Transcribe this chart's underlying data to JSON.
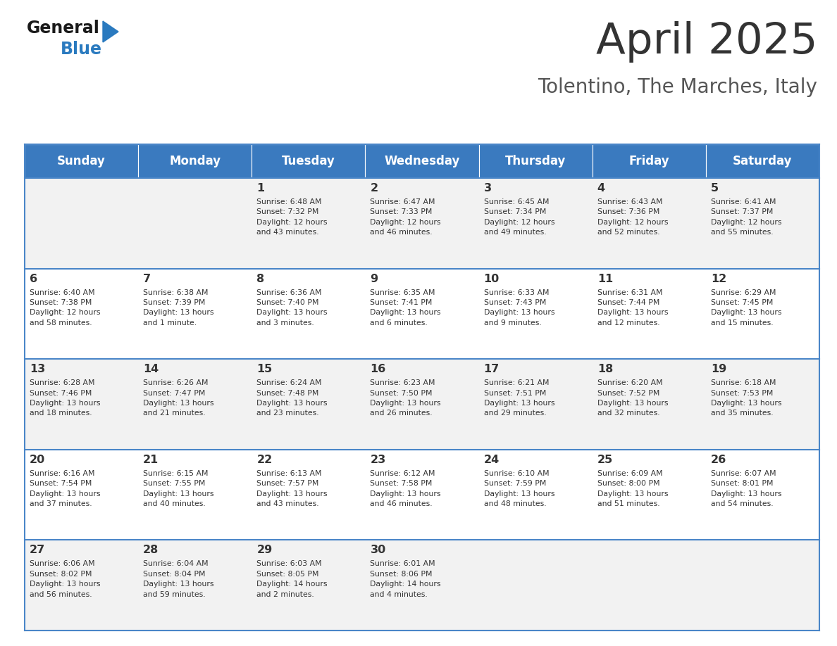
{
  "title": "April 2025",
  "subtitle": "Tolentino, The Marches, Italy",
  "days_of_week": [
    "Sunday",
    "Monday",
    "Tuesday",
    "Wednesday",
    "Thursday",
    "Friday",
    "Saturday"
  ],
  "header_bg": "#3a7abf",
  "header_text": "#ffffff",
  "row_bg_odd": "#f2f2f2",
  "row_bg_even": "#ffffff",
  "cell_text": "#333333",
  "border_color": "#4a86c8",
  "separator_color": "#4a86c8",
  "title_color": "#333333",
  "subtitle_color": "#555555",
  "logo_general_color": "#1a1a1a",
  "logo_blue_color": "#2a7abf",
  "weeks": [
    [
      {
        "day": "",
        "info": ""
      },
      {
        "day": "",
        "info": ""
      },
      {
        "day": "1",
        "info": "Sunrise: 6:48 AM\nSunset: 7:32 PM\nDaylight: 12 hours\nand 43 minutes."
      },
      {
        "day": "2",
        "info": "Sunrise: 6:47 AM\nSunset: 7:33 PM\nDaylight: 12 hours\nand 46 minutes."
      },
      {
        "day": "3",
        "info": "Sunrise: 6:45 AM\nSunset: 7:34 PM\nDaylight: 12 hours\nand 49 minutes."
      },
      {
        "day": "4",
        "info": "Sunrise: 6:43 AM\nSunset: 7:36 PM\nDaylight: 12 hours\nand 52 minutes."
      },
      {
        "day": "5",
        "info": "Sunrise: 6:41 AM\nSunset: 7:37 PM\nDaylight: 12 hours\nand 55 minutes."
      }
    ],
    [
      {
        "day": "6",
        "info": "Sunrise: 6:40 AM\nSunset: 7:38 PM\nDaylight: 12 hours\nand 58 minutes."
      },
      {
        "day": "7",
        "info": "Sunrise: 6:38 AM\nSunset: 7:39 PM\nDaylight: 13 hours\nand 1 minute."
      },
      {
        "day": "8",
        "info": "Sunrise: 6:36 AM\nSunset: 7:40 PM\nDaylight: 13 hours\nand 3 minutes."
      },
      {
        "day": "9",
        "info": "Sunrise: 6:35 AM\nSunset: 7:41 PM\nDaylight: 13 hours\nand 6 minutes."
      },
      {
        "day": "10",
        "info": "Sunrise: 6:33 AM\nSunset: 7:43 PM\nDaylight: 13 hours\nand 9 minutes."
      },
      {
        "day": "11",
        "info": "Sunrise: 6:31 AM\nSunset: 7:44 PM\nDaylight: 13 hours\nand 12 minutes."
      },
      {
        "day": "12",
        "info": "Sunrise: 6:29 AM\nSunset: 7:45 PM\nDaylight: 13 hours\nand 15 minutes."
      }
    ],
    [
      {
        "day": "13",
        "info": "Sunrise: 6:28 AM\nSunset: 7:46 PM\nDaylight: 13 hours\nand 18 minutes."
      },
      {
        "day": "14",
        "info": "Sunrise: 6:26 AM\nSunset: 7:47 PM\nDaylight: 13 hours\nand 21 minutes."
      },
      {
        "day": "15",
        "info": "Sunrise: 6:24 AM\nSunset: 7:48 PM\nDaylight: 13 hours\nand 23 minutes."
      },
      {
        "day": "16",
        "info": "Sunrise: 6:23 AM\nSunset: 7:50 PM\nDaylight: 13 hours\nand 26 minutes."
      },
      {
        "day": "17",
        "info": "Sunrise: 6:21 AM\nSunset: 7:51 PM\nDaylight: 13 hours\nand 29 minutes."
      },
      {
        "day": "18",
        "info": "Sunrise: 6:20 AM\nSunset: 7:52 PM\nDaylight: 13 hours\nand 32 minutes."
      },
      {
        "day": "19",
        "info": "Sunrise: 6:18 AM\nSunset: 7:53 PM\nDaylight: 13 hours\nand 35 minutes."
      }
    ],
    [
      {
        "day": "20",
        "info": "Sunrise: 6:16 AM\nSunset: 7:54 PM\nDaylight: 13 hours\nand 37 minutes."
      },
      {
        "day": "21",
        "info": "Sunrise: 6:15 AM\nSunset: 7:55 PM\nDaylight: 13 hours\nand 40 minutes."
      },
      {
        "day": "22",
        "info": "Sunrise: 6:13 AM\nSunset: 7:57 PM\nDaylight: 13 hours\nand 43 minutes."
      },
      {
        "day": "23",
        "info": "Sunrise: 6:12 AM\nSunset: 7:58 PM\nDaylight: 13 hours\nand 46 minutes."
      },
      {
        "day": "24",
        "info": "Sunrise: 6:10 AM\nSunset: 7:59 PM\nDaylight: 13 hours\nand 48 minutes."
      },
      {
        "day": "25",
        "info": "Sunrise: 6:09 AM\nSunset: 8:00 PM\nDaylight: 13 hours\nand 51 minutes."
      },
      {
        "day": "26",
        "info": "Sunrise: 6:07 AM\nSunset: 8:01 PM\nDaylight: 13 hours\nand 54 minutes."
      }
    ],
    [
      {
        "day": "27",
        "info": "Sunrise: 6:06 AM\nSunset: 8:02 PM\nDaylight: 13 hours\nand 56 minutes."
      },
      {
        "day": "28",
        "info": "Sunrise: 6:04 AM\nSunset: 8:04 PM\nDaylight: 13 hours\nand 59 minutes."
      },
      {
        "day": "29",
        "info": "Sunrise: 6:03 AM\nSunset: 8:05 PM\nDaylight: 14 hours\nand 2 minutes."
      },
      {
        "day": "30",
        "info": "Sunrise: 6:01 AM\nSunset: 8:06 PM\nDaylight: 14 hours\nand 4 minutes."
      },
      {
        "day": "",
        "info": ""
      },
      {
        "day": "",
        "info": ""
      },
      {
        "day": "",
        "info": ""
      }
    ]
  ]
}
